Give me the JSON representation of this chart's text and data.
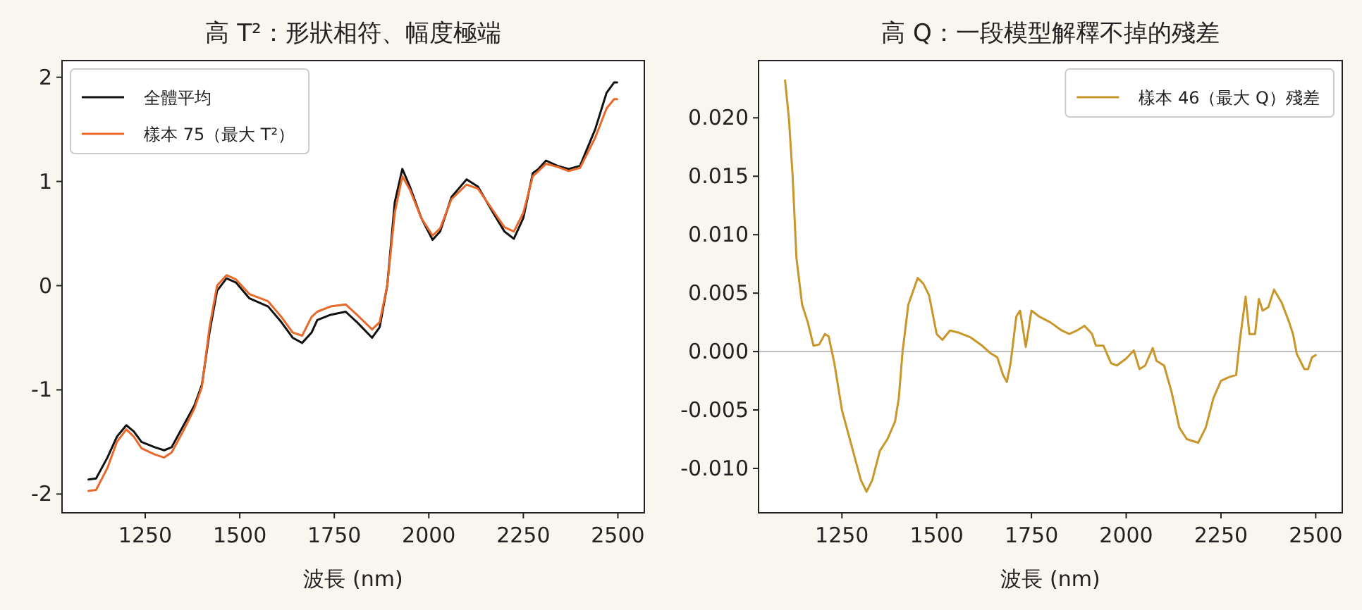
{
  "chart_data": [
    {
      "type": "line",
      "title": "高 T²：形狀相符、幅度極端",
      "xlabel": "波長 (nm)",
      "xlim": [
        1030,
        2570
      ],
      "ylim": [
        -2.18,
        2.16
      ],
      "xticks": [
        1250,
        1500,
        1750,
        2000,
        2250,
        2500
      ],
      "yticks": [
        -2,
        -1,
        0,
        1,
        2
      ],
      "legend": "top left",
      "series": [
        {
          "name": "全體平均",
          "color": "#111111",
          "x": [
            1100,
            1120,
            1150,
            1175,
            1200,
            1220,
            1240,
            1275,
            1300,
            1320,
            1350,
            1380,
            1400,
            1420,
            1440,
            1465,
            1490,
            1525,
            1575,
            1610,
            1640,
            1665,
            1690,
            1705,
            1740,
            1780,
            1810,
            1850,
            1870,
            1890,
            1910,
            1930,
            1950,
            1980,
            2010,
            2030,
            2060,
            2100,
            2130,
            2170,
            2200,
            2225,
            2250,
            2275,
            2290,
            2310,
            2340,
            2370,
            2400,
            2440,
            2470,
            2490,
            2498
          ],
          "values": [
            -1.86,
            -1.85,
            -1.65,
            -1.45,
            -1.34,
            -1.4,
            -1.5,
            -1.55,
            -1.58,
            -1.55,
            -1.35,
            -1.15,
            -0.95,
            -0.45,
            -0.05,
            0.07,
            0.03,
            -0.12,
            -0.2,
            -0.35,
            -0.5,
            -0.55,
            -0.45,
            -0.33,
            -0.28,
            -0.25,
            -0.35,
            -0.5,
            -0.4,
            0.0,
            0.8,
            1.12,
            0.95,
            0.65,
            0.44,
            0.52,
            0.85,
            1.02,
            0.95,
            0.7,
            0.52,
            0.45,
            0.65,
            1.08,
            1.12,
            1.2,
            1.15,
            1.12,
            1.15,
            1.5,
            1.85,
            1.95,
            1.95
          ]
        },
        {
          "name": "樣本 75（最大 T²）",
          "color": "#e8692a",
          "x": [
            1100,
            1120,
            1150,
            1175,
            1200,
            1220,
            1240,
            1275,
            1300,
            1320,
            1350,
            1380,
            1400,
            1420,
            1440,
            1465,
            1490,
            1525,
            1575,
            1610,
            1640,
            1665,
            1690,
            1705,
            1740,
            1780,
            1810,
            1850,
            1870,
            1890,
            1910,
            1930,
            1950,
            1980,
            2010,
            2030,
            2060,
            2100,
            2130,
            2170,
            2200,
            2225,
            2250,
            2275,
            2290,
            2310,
            2340,
            2370,
            2400,
            2440,
            2470,
            2490,
            2498
          ],
          "values": [
            -1.97,
            -1.96,
            -1.75,
            -1.5,
            -1.38,
            -1.45,
            -1.56,
            -1.62,
            -1.65,
            -1.6,
            -1.4,
            -1.18,
            -0.97,
            -0.4,
            0.0,
            0.1,
            0.06,
            -0.08,
            -0.15,
            -0.3,
            -0.45,
            -0.48,
            -0.3,
            -0.25,
            -0.2,
            -0.18,
            -0.28,
            -0.42,
            -0.35,
            0.0,
            0.7,
            1.05,
            0.92,
            0.65,
            0.48,
            0.55,
            0.83,
            0.97,
            0.93,
            0.72,
            0.56,
            0.52,
            0.7,
            1.05,
            1.1,
            1.17,
            1.14,
            1.1,
            1.13,
            1.42,
            1.7,
            1.79,
            1.79
          ]
        }
      ]
    },
    {
      "type": "line",
      "title": "高 Q：一段模型解釋不掉的殘差",
      "xlabel": "波長 (nm)",
      "xlim": [
        1030,
        2570
      ],
      "ylim": [
        -0.0138,
        0.0249
      ],
      "xticks": [
        1250,
        1500,
        1750,
        2000,
        2250,
        2500
      ],
      "yticks": [
        {
          "value": -0.01,
          "label": "-0.010"
        },
        {
          "value": -0.005,
          "label": "-0.005"
        },
        {
          "value": 0,
          "label": "0.000"
        },
        {
          "value": 0.005,
          "label": "0.005"
        },
        {
          "value": 0.01,
          "label": "0.010"
        },
        {
          "value": 0.015,
          "label": "0.015"
        },
        {
          "value": 0.02,
          "label": "0.020"
        }
      ],
      "legend": "top right",
      "ref_lines": [
        {
          "axis": "y",
          "value": 0,
          "color": "#aaaaaa"
        }
      ],
      "series": [
        {
          "name": "樣本 46（最大 Q）殘差",
          "color": "#c9962a",
          "x": [
            1100,
            1110,
            1120,
            1130,
            1145,
            1160,
            1175,
            1190,
            1205,
            1215,
            1230,
            1250,
            1275,
            1300,
            1315,
            1330,
            1350,
            1370,
            1390,
            1400,
            1410,
            1425,
            1450,
            1465,
            1480,
            1500,
            1515,
            1535,
            1560,
            1590,
            1620,
            1640,
            1660,
            1675,
            1685,
            1695,
            1710,
            1720,
            1735,
            1750,
            1770,
            1800,
            1830,
            1850,
            1870,
            1890,
            1910,
            1920,
            1940,
            1960,
            1975,
            2000,
            2020,
            2035,
            2050,
            2070,
            2080,
            2100,
            2120,
            2140,
            2160,
            2190,
            2210,
            2230,
            2250,
            2270,
            2290,
            2300,
            2315,
            2325,
            2340,
            2350,
            2360,
            2375,
            2390,
            2410,
            2430,
            2440,
            2450,
            2470,
            2480,
            2490,
            2500
          ],
          "values": [
            0.0232,
            0.02,
            0.015,
            0.008,
            0.004,
            0.0025,
            0.0005,
            0.0006,
            0.0015,
            0.0013,
            -0.001,
            -0.005,
            -0.008,
            -0.011,
            -0.012,
            -0.011,
            -0.0085,
            -0.0075,
            -0.006,
            -0.004,
            0.0,
            0.004,
            0.0063,
            0.0058,
            0.0048,
            0.0015,
            0.001,
            0.0018,
            0.0016,
            0.0012,
            0.0005,
            -0.0001,
            -0.0005,
            -0.002,
            -0.0026,
            -0.001,
            0.003,
            0.0035,
            0.0004,
            0.0035,
            0.003,
            0.0025,
            0.0018,
            0.0015,
            0.0018,
            0.0022,
            0.0015,
            0.0005,
            0.0005,
            -0.001,
            -0.0012,
            -0.0006,
            0.0001,
            -0.0015,
            -0.0012,
            0.0003,
            -0.0008,
            -0.0012,
            -0.0035,
            -0.0065,
            -0.0075,
            -0.0078,
            -0.0065,
            -0.004,
            -0.0025,
            -0.0022,
            -0.002,
            0.001,
            0.0047,
            0.0015,
            0.0015,
            0.0045,
            0.0035,
            0.0038,
            0.0053,
            0.0042,
            0.0025,
            0.0015,
            -0.0002,
            -0.0015,
            -0.0015,
            -0.0005,
            -0.0003
          ]
        }
      ]
    }
  ]
}
